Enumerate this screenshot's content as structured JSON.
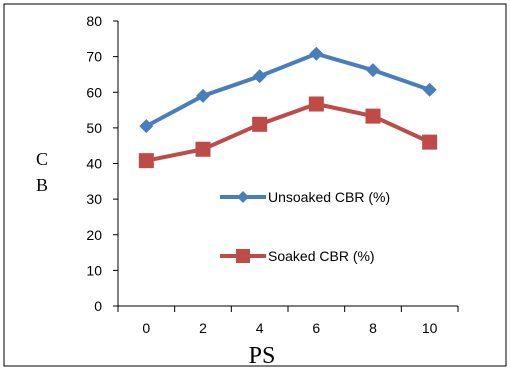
{
  "chart_data": {
    "type": "line",
    "xlabel": "PS",
    "ylabel_chars": [
      "C",
      "B"
    ],
    "categories": [
      "0",
      "2",
      "4",
      "6",
      "8",
      "10"
    ],
    "ylim": [
      0,
      80
    ],
    "yticks": [
      "0",
      "10",
      "20",
      "30",
      "40",
      "50",
      "60",
      "70",
      "80"
    ],
    "grid": false,
    "legend_position": "inside-right",
    "series": [
      {
        "name": "Unsoaked CBR (%)",
        "color": "#4a7ebb",
        "marker": "diamond",
        "values": [
          50.5,
          59,
          64.5,
          70.8,
          66.2,
          60.7
        ]
      },
      {
        "name": "Soaked CBR (%)",
        "color": "#be4b48",
        "marker": "square",
        "values": [
          40.8,
          44,
          51,
          56.7,
          53.3,
          46
        ]
      }
    ]
  }
}
